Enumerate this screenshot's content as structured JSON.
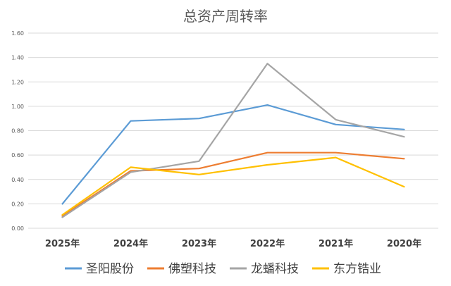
{
  "chart_data": {
    "type": "line",
    "title": "总资产周转率",
    "categories": [
      "2025年",
      "2024年",
      "2023年",
      "2022年",
      "2021年",
      "2020年"
    ],
    "ylim": [
      0,
      1.6
    ],
    "yticks": [
      "0.00",
      "0.20",
      "0.40",
      "0.60",
      "0.80",
      "1.00",
      "1.20",
      "1.40",
      "1.60"
    ],
    "grid": true,
    "legend_position": "bottom",
    "series": [
      {
        "name": "圣阳股份",
        "color": "#5b9bd5",
        "values": [
          0.2,
          0.88,
          0.9,
          1.01,
          0.85,
          0.81
        ]
      },
      {
        "name": "佛塑科技",
        "color": "#ed7d31",
        "values": [
          0.1,
          0.47,
          0.49,
          0.62,
          0.62,
          0.57
        ]
      },
      {
        "name": "龙蟠科技",
        "color": "#a5a5a5",
        "values": [
          0.09,
          0.46,
          0.55,
          1.35,
          0.89,
          0.75
        ]
      },
      {
        "name": "东方锆业",
        "color": "#ffc000",
        "values": [
          0.11,
          0.5,
          0.44,
          0.52,
          0.58,
          0.34
        ]
      }
    ]
  }
}
